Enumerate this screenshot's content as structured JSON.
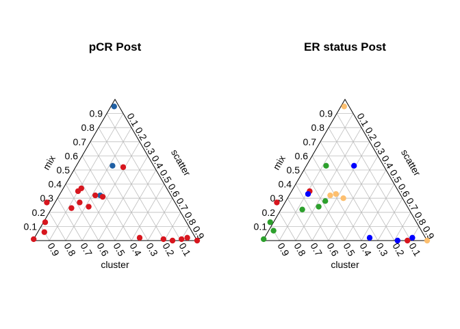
{
  "chart_data": [
    {
      "type": "scatter",
      "subtype": "ternary",
      "title": "pCR Post",
      "axes": {
        "left": "mix",
        "right": "scatter",
        "bottom": "cluster"
      },
      "ticks": [
        "0.1",
        "0.2",
        "0.3",
        "0.4",
        "0.5",
        "0.6",
        "0.7",
        "0.8",
        "0.9"
      ],
      "grid": true,
      "points": [
        {
          "cluster": 0.03,
          "mix": 0.95,
          "scatter": 0.02,
          "color": "#1f5fa3"
        },
        {
          "cluster": 0.25,
          "mix": 0.53,
          "scatter": 0.22,
          "color": "#1f5fa3"
        },
        {
          "cluster": 0.43,
          "mix": 0.32,
          "scatter": 0.25,
          "color": "#1f5fa3"
        },
        {
          "cluster": 0.19,
          "mix": 0.52,
          "scatter": 0.29,
          "color": "#d7161e"
        },
        {
          "cluster": 0.78,
          "mix": 0.27,
          "scatter": -0.05,
          "color": "#d7161e"
        },
        {
          "cluster": 0.55,
          "mix": 0.35,
          "scatter": 0.1,
          "color": "#d7161e"
        },
        {
          "cluster": 0.52,
          "mix": 0.37,
          "scatter": 0.11,
          "color": "#d7161e"
        },
        {
          "cluster": 0.58,
          "mix": 0.27,
          "scatter": 0.15,
          "color": "#d7161e"
        },
        {
          "cluster": 0.65,
          "mix": 0.23,
          "scatter": 0.12,
          "color": "#d7161e"
        },
        {
          "cluster": 0.54,
          "mix": 0.24,
          "scatter": 0.22,
          "color": "#d7161e"
        },
        {
          "cluster": 0.46,
          "mix": 0.32,
          "scatter": 0.22,
          "color": "#d7161e"
        },
        {
          "cluster": 0.42,
          "mix": 0.31,
          "scatter": 0.27,
          "color": "#d7161e"
        },
        {
          "cluster": 0.86,
          "mix": 0.13,
          "scatter": 0.01,
          "color": "#d7161e"
        },
        {
          "cluster": 0.9,
          "mix": 0.06,
          "scatter": 0.04,
          "color": "#d7161e"
        },
        {
          "cluster": 0.99,
          "mix": 0.01,
          "scatter": 0.0,
          "color": "#d7161e"
        },
        {
          "cluster": 0.34,
          "mix": 0.02,
          "scatter": 0.64,
          "color": "#d7161e"
        },
        {
          "cluster": 0.2,
          "mix": 0.01,
          "scatter": 0.79,
          "color": "#d7161e"
        },
        {
          "cluster": 0.15,
          "mix": 0.0,
          "scatter": 0.85,
          "color": "#d7161e"
        },
        {
          "cluster": 0.05,
          "mix": 0.02,
          "scatter": 0.93,
          "color": "#d7161e"
        },
        {
          "cluster": 0.0,
          "mix": 0.0,
          "scatter": 1.0,
          "color": "#d7161e"
        },
        {
          "cluster": 0.09,
          "mix": 0.01,
          "scatter": 0.9,
          "color": "#d7161e"
        }
      ]
    },
    {
      "type": "scatter",
      "subtype": "ternary",
      "title": "ER status Post",
      "axes": {
        "left": "mix",
        "right": "scatter",
        "bottom": "cluster"
      },
      "ticks": [
        "0.1",
        "0.2",
        "0.3",
        "0.4",
        "0.5",
        "0.6",
        "0.7",
        "0.8",
        "0.9"
      ],
      "grid": true,
      "points": [
        {
          "cluster": 0.03,
          "mix": 0.95,
          "scatter": 0.02,
          "color": "#fdbf6f"
        },
        {
          "cluster": 0.18,
          "mix": 0.53,
          "scatter": 0.29,
          "color": "#0000ff"
        },
        {
          "cluster": 0.35,
          "mix": 0.53,
          "scatter": 0.12,
          "color": "#2ca02c"
        },
        {
          "cluster": 0.54,
          "mix": 0.35,
          "scatter": 0.11,
          "color": "#d7161e"
        },
        {
          "cluster": 0.56,
          "mix": 0.33,
          "scatter": 0.11,
          "color": "#0000ff"
        },
        {
          "cluster": 0.78,
          "mix": 0.27,
          "scatter": -0.05,
          "color": "#d7161e"
        },
        {
          "cluster": 0.48,
          "mix": 0.28,
          "scatter": 0.24,
          "color": "#2ca02c"
        },
        {
          "cluster": 0.65,
          "mix": 0.22,
          "scatter": 0.13,
          "color": "#2ca02c"
        },
        {
          "cluster": 0.54,
          "mix": 0.24,
          "scatter": 0.22,
          "color": "#2ca02c"
        },
        {
          "cluster": 0.43,
          "mix": 0.32,
          "scatter": 0.25,
          "color": "#fdbf6f"
        },
        {
          "cluster": 0.39,
          "mix": 0.33,
          "scatter": 0.28,
          "color": "#fdbf6f"
        },
        {
          "cluster": 0.36,
          "mix": 0.3,
          "scatter": 0.34,
          "color": "#fdbf6f"
        },
        {
          "cluster": 0.89,
          "mix": 0.13,
          "scatter": -0.02,
          "color": "#2ca02c"
        },
        {
          "cluster": 0.9,
          "mix": 0.07,
          "scatter": 0.03,
          "color": "#2ca02c"
        },
        {
          "cluster": 0.99,
          "mix": 0.01,
          "scatter": 0.0,
          "color": "#2ca02c"
        },
        {
          "cluster": 0.34,
          "mix": 0.02,
          "scatter": 0.64,
          "color": "#0000ff"
        },
        {
          "cluster": 0.18,
          "mix": 0.0,
          "scatter": 0.82,
          "color": "#0000ff"
        },
        {
          "cluster": 0.08,
          "mix": 0.02,
          "scatter": 0.9,
          "color": "#0000ff"
        },
        {
          "cluster": 0.12,
          "mix": 0.0,
          "scatter": 0.88,
          "color": "#d7161e"
        },
        {
          "cluster": 0.0,
          "mix": 0.0,
          "scatter": 1.0,
          "color": "#fdbf6f"
        }
      ]
    }
  ]
}
